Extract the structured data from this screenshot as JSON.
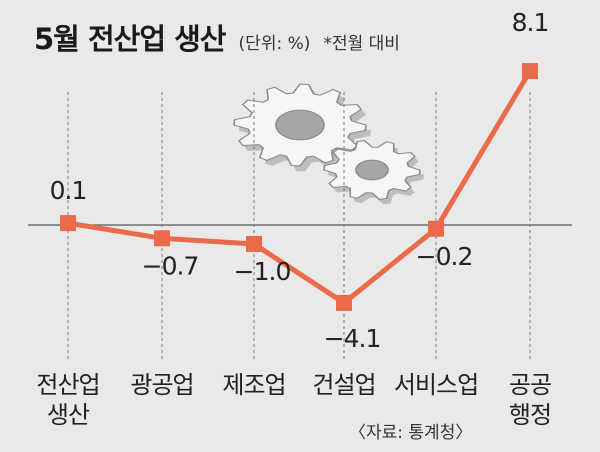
{
  "title": "5월 전산업 생산",
  "unit_note": "(단위: %)",
  "note": "*전월 대비",
  "source": "〈자료: 통계청〉",
  "colors": {
    "line": "#ea6a4a",
    "marker": "#ea6a4a",
    "axis": "#555555",
    "background": "#e9e9e9"
  },
  "icons": [
    "gears-icon"
  ],
  "chart_data": {
    "type": "line",
    "categories": [
      [
        "전산업",
        "생산"
      ],
      [
        "광공업"
      ],
      [
        "제조업"
      ],
      [
        "건설업"
      ],
      [
        "서비스업"
      ],
      [
        "공공",
        "행정"
      ]
    ],
    "series": [
      {
        "values": [
          0.1,
          -0.7,
          -1.0,
          -4.1,
          -0.2,
          8.1
        ]
      }
    ],
    "value_labels": [
      "0.1",
      "−0.7",
      "−1.0",
      "−4.1",
      "−0.2",
      "8.1"
    ],
    "baseline": 0,
    "grid": false
  }
}
